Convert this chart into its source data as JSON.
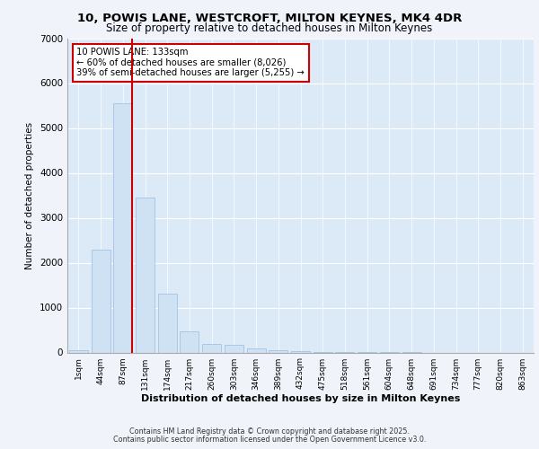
{
  "title_line1": "10, POWIS LANE, WESTCROFT, MILTON KEYNES, MK4 4DR",
  "title_line2": "Size of property relative to detached houses in Milton Keynes",
  "xlabel": "Distribution of detached houses by size in Milton Keynes",
  "ylabel": "Number of detached properties",
  "categories": [
    "1sqm",
    "44sqm",
    "87sqm",
    "131sqm",
    "174sqm",
    "217sqm",
    "260sqm",
    "303sqm",
    "346sqm",
    "389sqm",
    "432sqm",
    "475sqm",
    "518sqm",
    "561sqm",
    "604sqm",
    "648sqm",
    "691sqm",
    "734sqm",
    "777sqm",
    "820sqm",
    "863sqm"
  ],
  "values": [
    60,
    2300,
    5560,
    3450,
    1310,
    470,
    200,
    175,
    90,
    45,
    30,
    20,
    8,
    4,
    2,
    1,
    0,
    0,
    0,
    0,
    0
  ],
  "bar_color": "#cfe2f3",
  "bar_edge_color": "#a4c2e0",
  "vline_color": "#cc0000",
  "annotation_text": "10 POWIS LANE: 133sqm\n← 60% of detached houses are smaller (8,026)\n39% of semi-detached houses are larger (5,255) →",
  "annotation_box_color": "#ffffff",
  "annotation_box_edge": "#cc0000",
  "ylim": [
    0,
    7000
  ],
  "yticks": [
    0,
    1000,
    2000,
    3000,
    4000,
    5000,
    6000,
    7000
  ],
  "plot_bg_color": "#dce9f7",
  "fig_bg_color": "#f0f4fa",
  "footer_line1": "Contains HM Land Registry data © Crown copyright and database right 2025.",
  "footer_line2": "Contains public sector information licensed under the Open Government Licence v3.0."
}
